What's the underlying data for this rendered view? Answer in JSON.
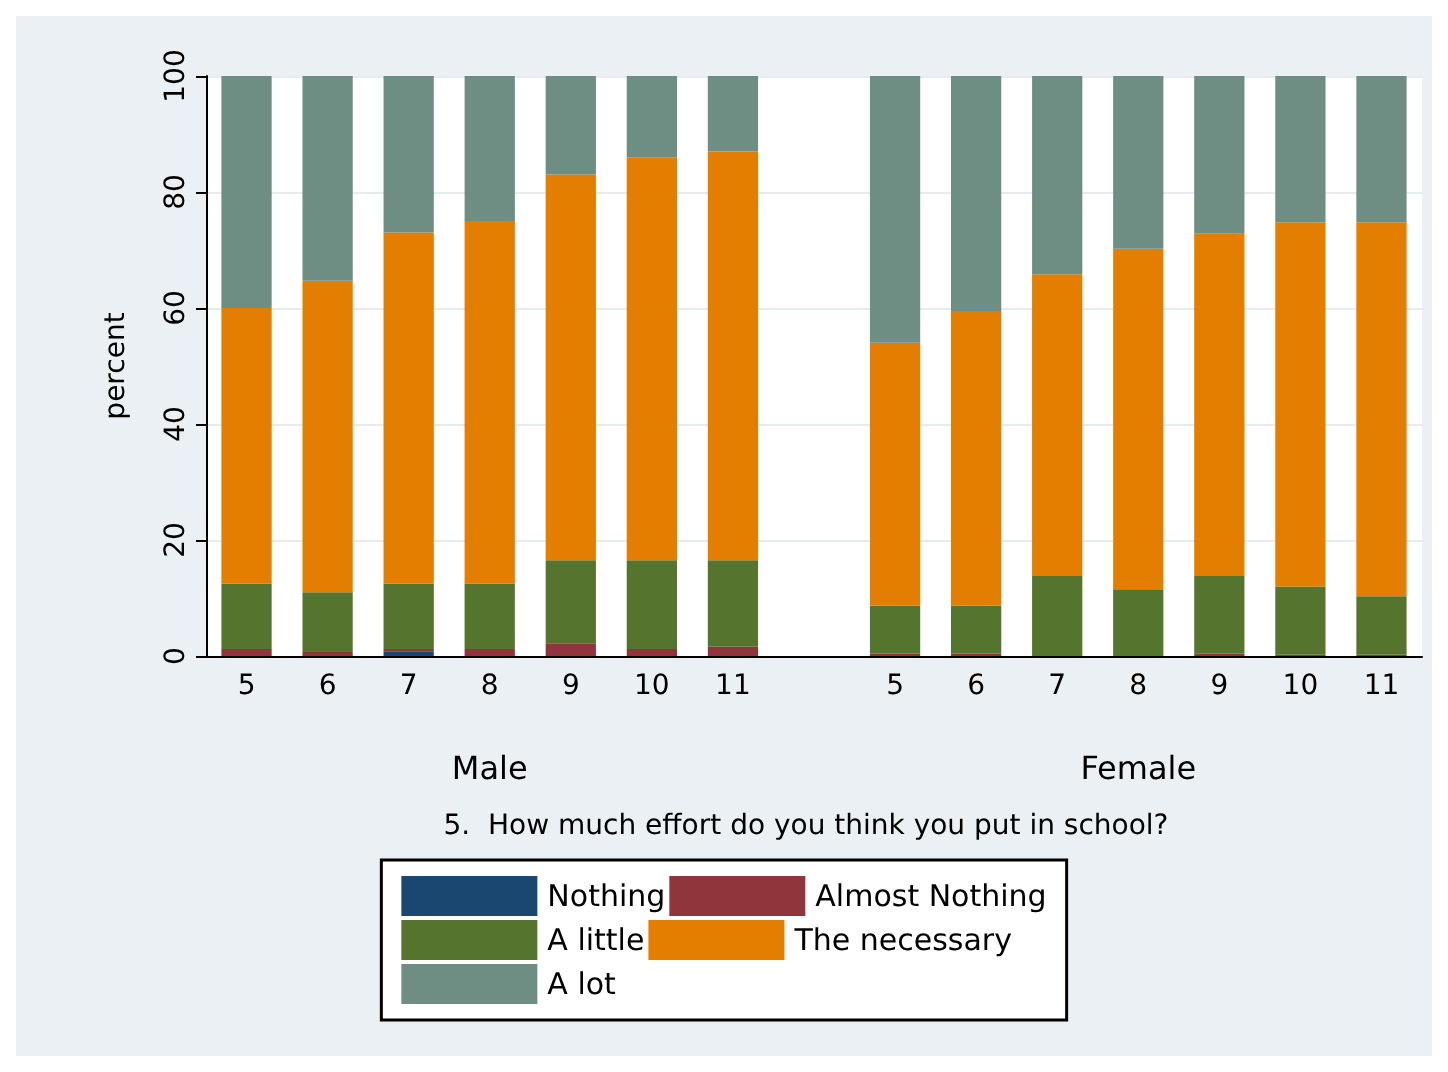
{
  "chart_data": {
    "type": "bar",
    "stacked": true,
    "ylabel": "percent",
    "categories": [
      "5",
      "6",
      "7",
      "8",
      "9",
      "10",
      "11",
      null,
      "5",
      "6",
      "7",
      "8",
      "9",
      "10",
      "11"
    ],
    "series": [
      {
        "name": "Nothing",
        "color": "#1a476f",
        "values": [
          0,
          0,
          0.8,
          0,
          0,
          0,
          0,
          null,
          0,
          0,
          0,
          0,
          0,
          0,
          0
        ]
      },
      {
        "name": "Almost Nothing",
        "color": "#90353b",
        "values": [
          1.2,
          0.7,
          0.4,
          1.2,
          2.2,
          1.2,
          1.6,
          null,
          0.4,
          0.4,
          0,
          0,
          0.4,
          0.2,
          0.2
        ]
      },
      {
        "name": "A little",
        "color": "#55752f",
        "values": [
          11.3,
          10.3,
          11.3,
          11.3,
          14.3,
          15.3,
          14.9,
          null,
          8.3,
          8.3,
          13.8,
          11.5,
          13.4,
          11.8,
          10.1
        ]
      },
      {
        "name": "The necessary",
        "color": "#e37e00",
        "values": [
          47.5,
          53.7,
          60.5,
          62.5,
          66.5,
          69.5,
          70.5,
          null,
          45.3,
          50.8,
          52,
          58.7,
          59,
          62.8,
          64.5
        ]
      },
      {
        "name": "A lot",
        "color": "#6e8e84",
        "values": [
          40,
          35.3,
          27,
          25,
          17,
          14,
          13,
          null,
          46,
          40.5,
          34.2,
          29.8,
          27.2,
          25.2,
          25.2
        ]
      }
    ],
    "ylim": [
      0,
      100
    ],
    "yticks": [
      0,
      20,
      40,
      60,
      80,
      100
    ],
    "grid": "y",
    "legend": "bottom",
    "annotations": [
      "Male",
      "Female",
      "5.  How much effort do you think you put in school?"
    ]
  }
}
